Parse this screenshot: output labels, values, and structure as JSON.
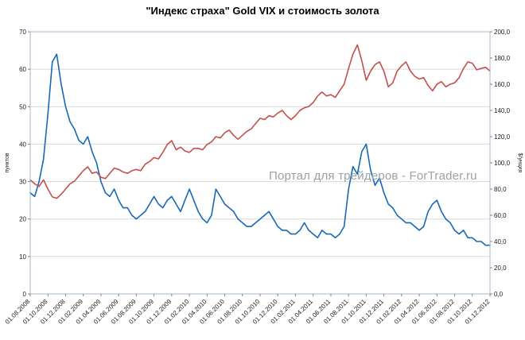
{
  "title": "\"Индекс страха\" Gold VIX и стоимость золота",
  "watermark": "Портал для трейдеров - ForTrader.ru",
  "colors": {
    "vix_line": "#1868B8",
    "gold_line": "#C4504E",
    "grid": "#D9D9D9",
    "plot_border": "#A3B8CC",
    "tick_text": "#1a1a1a",
    "watermark_text": "#9aa1a9"
  },
  "chart_data": {
    "type": "line",
    "title": "\"Индекс страха\" Gold VIX и стоимость золота",
    "grid": "horizontal",
    "legend": "none",
    "points_per_month": 2,
    "x_tick_labels": [
      "01.08.2008",
      "01.10.2008",
      "01.12.2008",
      "01.02.2009",
      "01.04.2009",
      "01.06.2009",
      "01.08.2009",
      "01.10.2009",
      "01.12.2009",
      "01.02.2010",
      "01.04.2010",
      "01.06.2010",
      "01.08.2010",
      "01.10.2010",
      "01.12.2010",
      "01.02.2011",
      "01.04.2011",
      "01.06.2011",
      "01.08.2011",
      "01.10.2011",
      "01.12.2011",
      "01.02.2012",
      "01.04.2012",
      "01.06.2012",
      "01.08.2012",
      "01.10.2012",
      "01.12.2012"
    ],
    "left_axis": {
      "label": "пунктов",
      "range": [
        0,
        70
      ],
      "ticks": [
        0,
        10,
        20,
        30,
        40,
        50,
        60,
        70
      ]
    },
    "right_axis": {
      "label": "$/унция",
      "range": [
        0,
        200
      ],
      "tick_values": [
        200,
        180,
        160,
        140,
        120,
        100,
        80,
        60,
        40,
        20,
        0
      ],
      "tick_labels": [
        "200,0",
        "180,0",
        "160,0",
        "140,0",
        "120,0",
        "100,0",
        "80,0",
        "60,0",
        "40,0",
        "20,0",
        "0,0"
      ]
    },
    "series": [
      {
        "name": "Gold VIX",
        "slug": "vix",
        "axis": "left",
        "color": "#1868B8",
        "values": [
          27,
          26,
          30,
          36,
          48,
          62,
          64,
          56,
          50,
          46,
          44,
          41,
          40,
          42,
          38,
          35,
          30,
          27,
          26,
          28,
          25,
          23,
          23,
          21,
          20,
          21,
          22,
          24,
          26,
          24,
          23,
          25,
          26,
          24,
          22,
          25,
          28,
          25,
          22,
          20,
          19,
          21,
          28,
          26,
          24,
          23,
          22,
          20,
          19,
          18,
          18,
          19,
          20,
          21,
          22,
          20,
          18,
          17,
          17,
          16,
          16,
          17,
          19,
          17,
          16,
          15,
          17,
          16,
          16,
          15,
          16,
          18,
          28,
          34,
          32,
          38,
          40,
          33,
          29,
          31,
          27,
          24,
          23,
          21,
          20,
          19,
          19,
          18,
          17,
          18,
          22,
          24,
          25,
          22,
          20,
          19,
          17,
          16,
          17,
          15,
          15,
          14,
          14,
          13,
          13
        ]
      },
      {
        "name": "Золото",
        "slug": "gold",
        "axis": "right",
        "color": "#C4504E",
        "values": [
          87,
          84,
          82,
          87,
          80,
          74,
          73,
          76,
          80,
          84,
          86,
          90,
          94,
          97,
          92,
          93,
          89,
          88,
          92,
          96,
          95,
          93,
          92,
          94,
          95,
          94,
          99,
          101,
          104,
          103,
          108,
          114,
          117,
          110,
          112,
          109,
          108,
          111,
          111,
          110,
          114,
          116,
          120,
          119,
          123,
          125,
          121,
          118,
          121,
          124,
          126,
          130,
          134,
          133,
          136,
          135,
          138,
          140,
          136,
          133,
          136,
          140,
          142,
          143,
          146,
          151,
          154,
          151,
          152,
          150,
          155,
          160,
          172,
          183,
          190,
          178,
          163,
          170,
          175,
          177,
          170,
          158,
          161,
          170,
          174,
          177,
          170,
          166,
          164,
          165,
          159,
          155,
          160,
          162,
          158,
          160,
          161,
          165,
          172,
          177,
          176,
          171,
          172,
          173,
          170
        ]
      }
    ]
  }
}
